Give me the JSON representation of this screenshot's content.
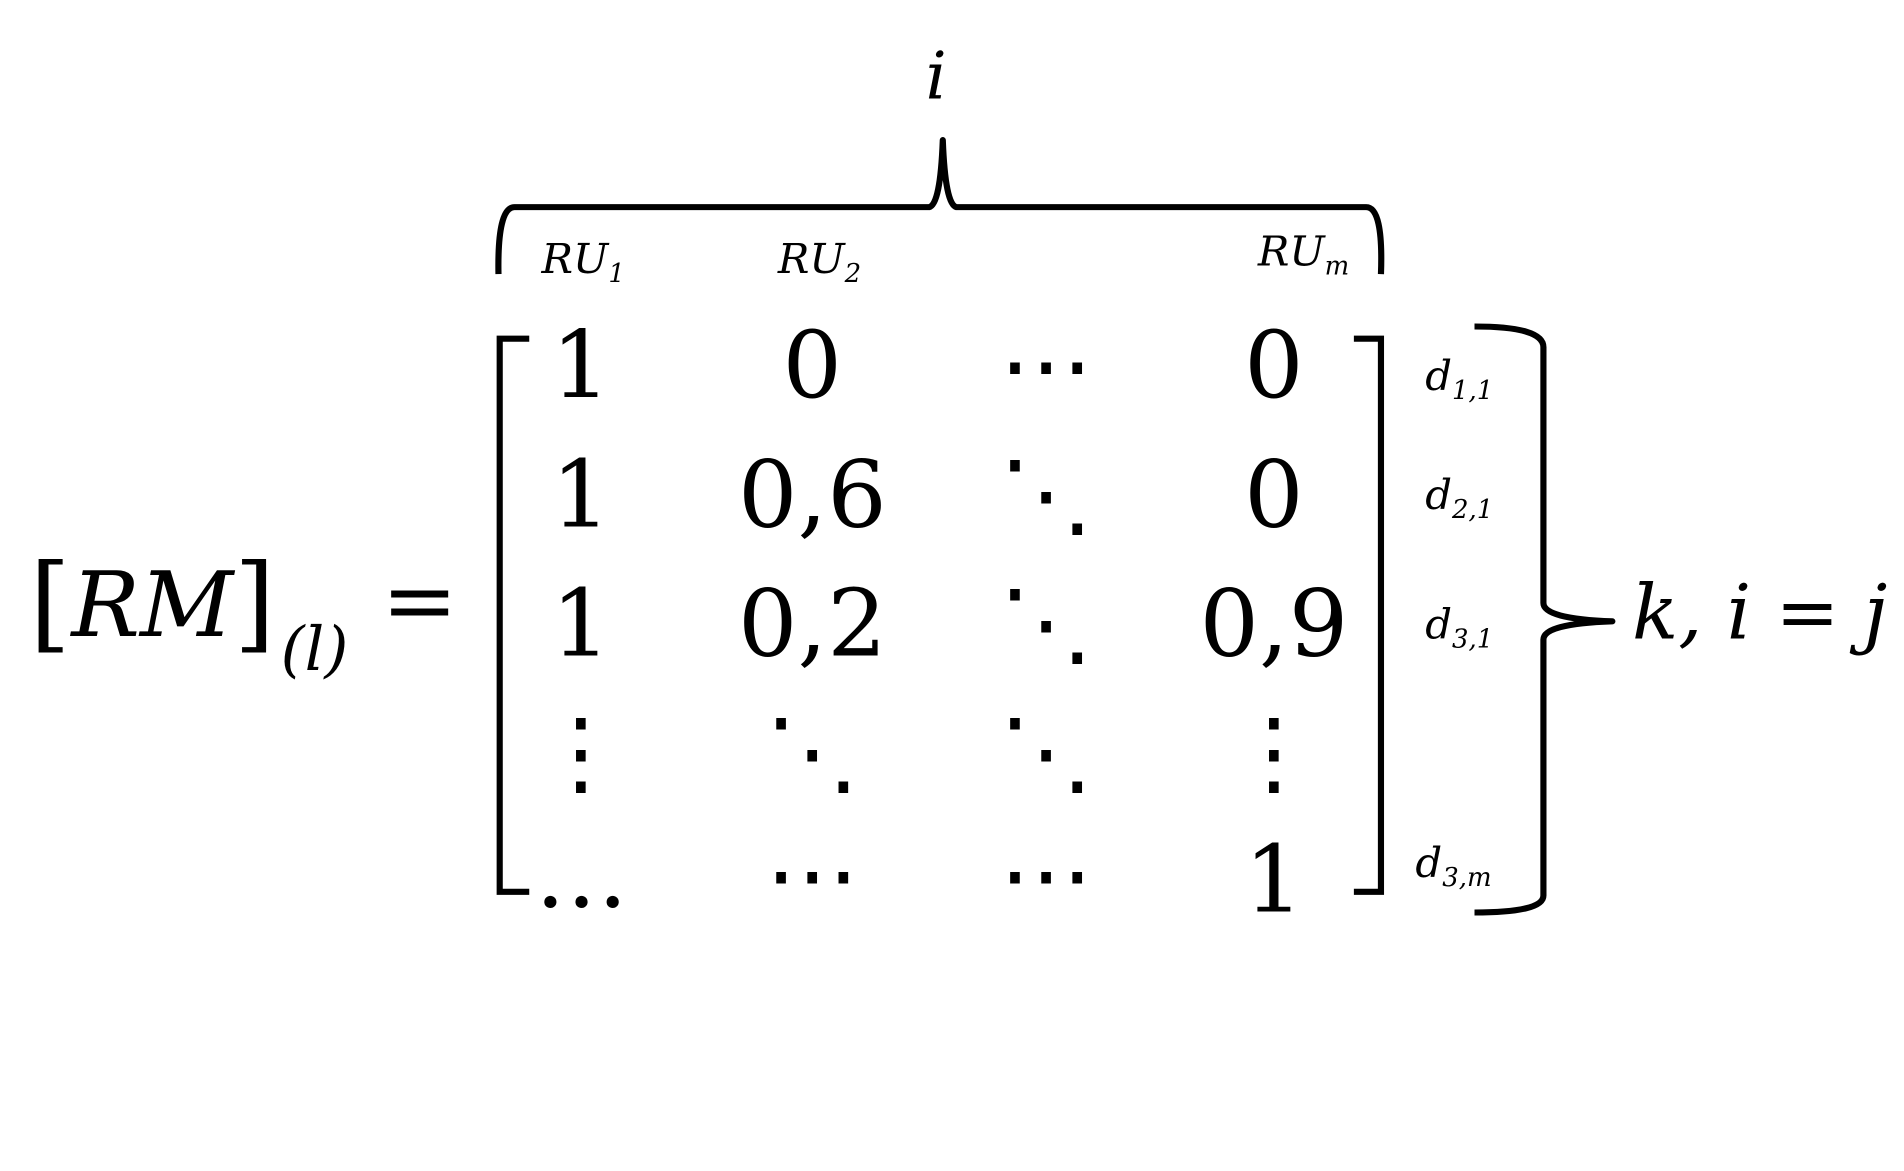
{
  "lhs": {
    "symbol": "RM",
    "subscript": "(l)",
    "equals": "="
  },
  "top_brace_label": "i",
  "columns": [
    {
      "base": "RU",
      "sub": "1"
    },
    {
      "base": "RU",
      "sub": "2"
    },
    {
      "base": "RU",
      "sub": "m"
    }
  ],
  "matrix": {
    "rows": [
      [
        "1",
        "0",
        "⋯",
        "0"
      ],
      [
        "1",
        "0,6",
        "⋱",
        "0"
      ],
      [
        "1",
        "0,2",
        "⋱",
        "0,9"
      ],
      [
        "⋮",
        "⋱",
        "⋱",
        "⋮"
      ],
      [
        "…",
        "⋯",
        "⋯",
        "1"
      ]
    ]
  },
  "row_labels": [
    {
      "base": "d",
      "sub": "1,1"
    },
    {
      "base": "d",
      "sub": "2,1"
    },
    {
      "base": "d",
      "sub": "3,1"
    },
    {
      "base": "d",
      "sub": "3,m"
    }
  ],
  "right_brace_label": "k, i = j"
}
